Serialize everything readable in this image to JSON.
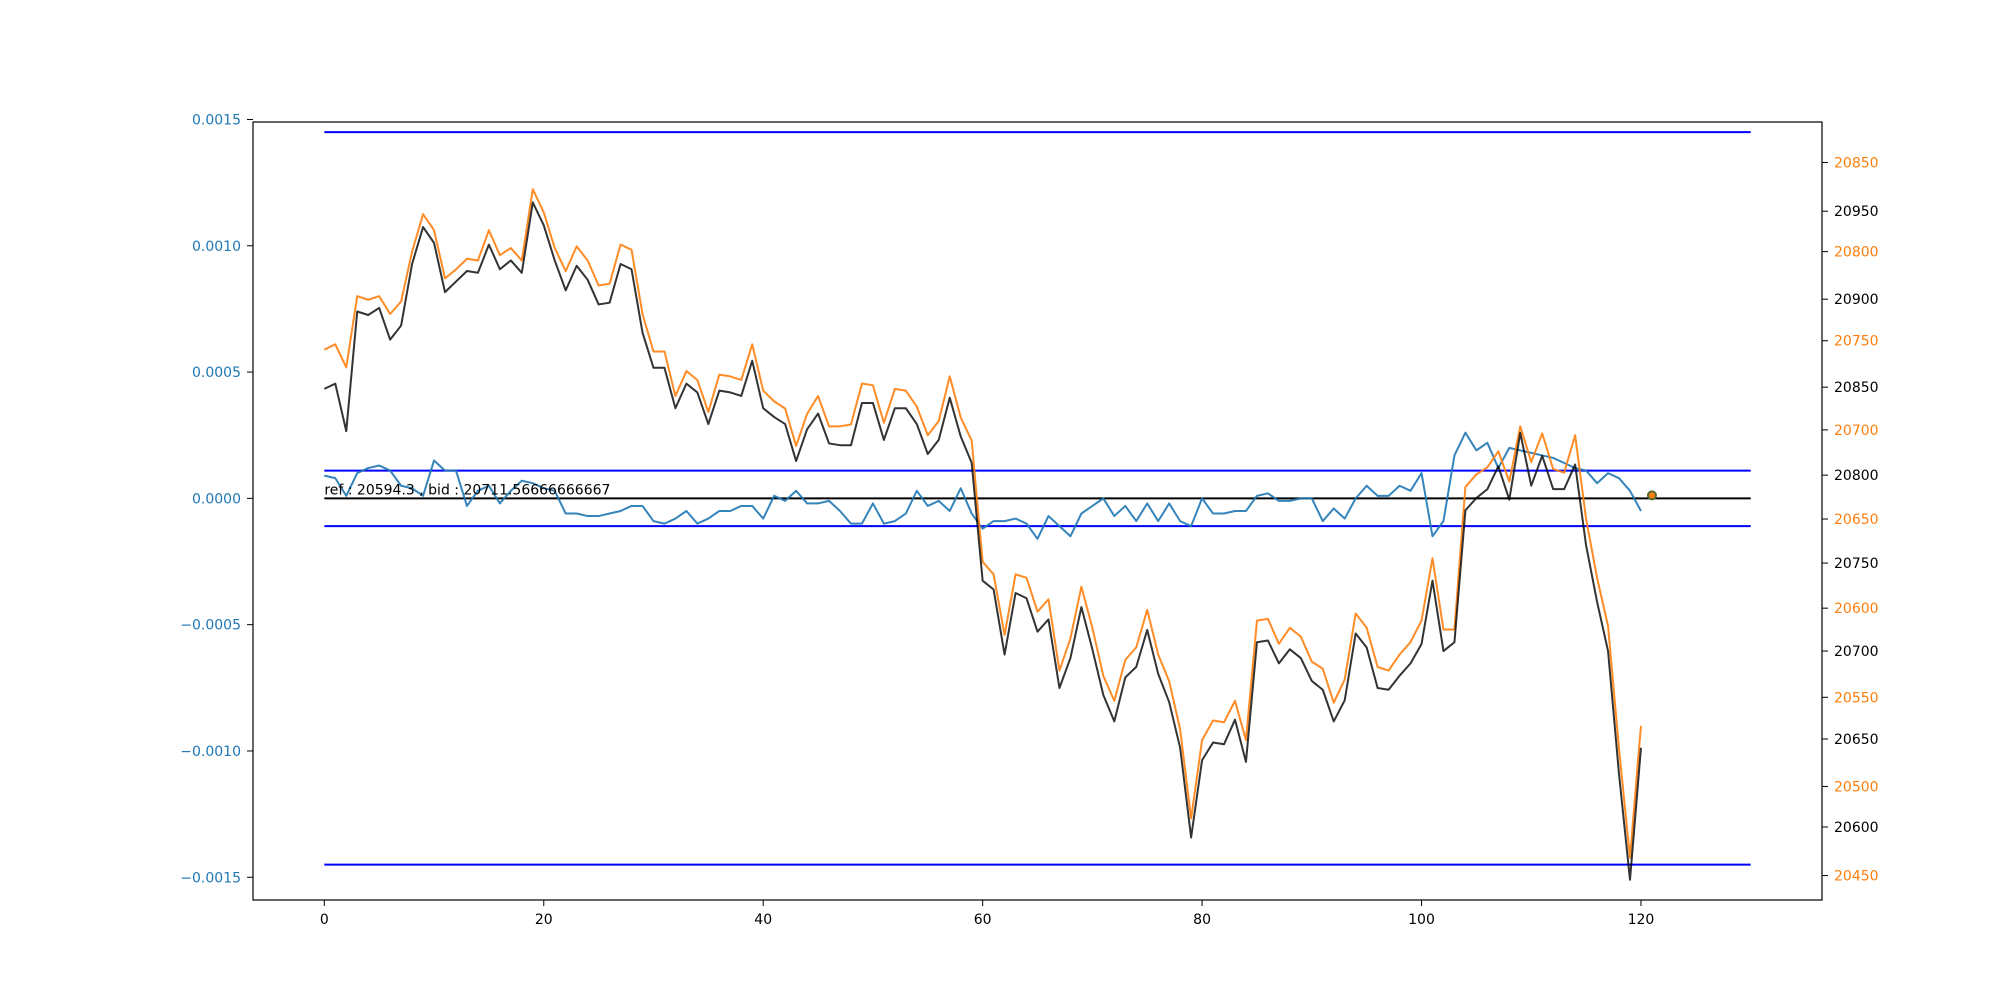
{
  "chart_data": {
    "type": "line",
    "title": "",
    "xlabel": "",
    "annotation": "ref : 20594.3 , bid : 20711.56666666667",
    "xlim": [
      -6.5,
      136.5
    ],
    "x_ticks": [
      0,
      20,
      40,
      60,
      80,
      100,
      120
    ],
    "axes": {
      "left": {
        "ylim": [
          -0.00159,
          0.00149
        ],
        "ticks": [
          -0.0015,
          -0.001,
          -0.0005,
          0.0,
          0.0005,
          0.001,
          0.0015
        ],
        "tick_labels": [
          "−0.0015",
          "−0.0010",
          "−0.0005",
          "0.0000",
          "0.0005",
          "0.0010",
          "0.0015"
        ],
        "color": "#1f77b4"
      },
      "right_orange": {
        "ylim": [
          20436.3,
          20872.7
        ],
        "ticks": [
          20450,
          20500,
          20550,
          20600,
          20650,
          20700,
          20750,
          20800,
          20850
        ],
        "color": "#ff7f0e"
      },
      "right_black": {
        "ylim": [
          20558.5,
          21000.7
        ],
        "ticks": [
          20600,
          20650,
          20700,
          20750,
          20800,
          20850,
          20900,
          20950
        ],
        "color": "#000000"
      }
    },
    "hlines": {
      "axis": "left",
      "color": "#0000ff",
      "black_color": "#000000",
      "xrange": [
        0,
        130
      ],
      "upper_band": 0.00145,
      "lower_band": -0.00145,
      "upper_inner": 0.00011,
      "lower_inner": -0.00011,
      "zero": 0.0
    },
    "marker": {
      "x": 121,
      "value": 1.2e-05,
      "axis": "left",
      "color": "#ff7f0e",
      "edge": "#556b2f"
    },
    "series": [
      {
        "axis": "left",
        "color": "#1f77b4",
        "values": [
          9e-05,
          8e-05,
          1e-05,
          0.0001,
          0.00012,
          0.00013,
          0.00011,
          5e-05,
          4e-05,
          1e-05,
          0.00015,
          0.00011,
          0.00011,
          -3e-05,
          3e-05,
          5e-05,
          -2e-05,
          3e-05,
          7e-05,
          6e-05,
          4e-05,
          3e-05,
          -6e-05,
          -6e-05,
          -7e-05,
          -7e-05,
          -6e-05,
          -5e-05,
          -3e-05,
          -3e-05,
          -9e-05,
          -0.0001,
          -8e-05,
          -5e-05,
          -0.0001,
          -8e-05,
          -5e-05,
          -5e-05,
          -3e-05,
          -3e-05,
          -8e-05,
          1e-05,
          -1e-05,
          3e-05,
          -2e-05,
          -2e-05,
          -1e-05,
          -5e-05,
          -0.0001,
          -0.0001,
          -2e-05,
          -0.0001,
          -9e-05,
          -6e-05,
          3e-05,
          -3e-05,
          -1e-05,
          -5e-05,
          4e-05,
          -6e-05,
          -0.00012,
          -9e-05,
          -9e-05,
          -8e-05,
          -0.0001,
          -0.00016,
          -7e-05,
          -0.00011,
          -0.00015,
          -6e-05,
          -3e-05,
          0.0,
          -7e-05,
          -3e-05,
          -9e-05,
          -2e-05,
          -9e-05,
          -2e-05,
          -9e-05,
          -0.00011,
          0.0,
          -6e-05,
          -6e-05,
          -5e-05,
          -5e-05,
          1e-05,
          2e-05,
          -1e-05,
          -1e-05,
          0.0,
          0.0,
          -9e-05,
          -4e-05,
          -8e-05,
          0.0,
          5e-05,
          1e-05,
          1e-05,
          5e-05,
          3e-05,
          0.0001,
          -0.00015,
          -9e-05,
          0.00017,
          0.00026,
          0.00019,
          0.00022,
          0.00012,
          0.0002,
          0.00019,
          0.00018,
          0.00017,
          0.00016,
          0.00014,
          0.00012,
          0.00011,
          6e-05,
          0.0001,
          8e-05,
          3e-05,
          -5e-05
        ]
      },
      {
        "axis": "right_orange",
        "color": "#ff7f0e",
        "values": [
          20745,
          20748,
          20735,
          20775,
          20773,
          20775,
          20765,
          20772,
          20800,
          20821,
          20812,
          20785,
          20790,
          20796,
          20795,
          20812,
          20798,
          20802,
          20795,
          20835,
          20822,
          20802,
          20789,
          20803,
          20795,
          20781,
          20782,
          20804,
          20801,
          20765,
          20744,
          20744,
          20719,
          20733,
          20728,
          20710,
          20731,
          20730,
          20728,
          20748,
          20722,
          20716,
          20712,
          20691,
          20709,
          20719,
          20702,
          20702,
          20703,
          20726,
          20725,
          20704,
          20723,
          20722,
          20713,
          20697,
          20705,
          20730,
          20707,
          20694,
          20626,
          20619,
          20585,
          20619,
          20617,
          20598,
          20605,
          20565,
          20583,
          20612,
          20589,
          20562,
          20548,
          20571,
          20578,
          20599,
          20574,
          20559,
          20532,
          20482,
          20526,
          20537,
          20536,
          20548,
          20526,
          20593,
          20594,
          20580,
          20589,
          20584,
          20570,
          20566,
          20547,
          20560,
          20597,
          20589,
          20567,
          20565,
          20574,
          20581,
          20593,
          20628,
          20588,
          20588,
          20668,
          20675,
          20679,
          20688,
          20671,
          20702,
          20682,
          20698,
          20678,
          20676,
          20697,
          20650,
          20617,
          20590,
          20521,
          20460,
          20534
        ]
      },
      {
        "axis": "right_black",
        "color": "#000000",
        "values": [
          20849,
          20852,
          20825,
          20893,
          20891,
          20895,
          20877,
          20885,
          20920,
          20941,
          20932,
          20904,
          20910,
          20916,
          20915,
          20931,
          20917,
          20922,
          20915,
          20955,
          20942,
          20922,
          20905,
          20919,
          20911,
          20897,
          20898,
          20920,
          20917,
          20881,
          20861,
          20861,
          20838,
          20852,
          20847,
          20829,
          20848,
          20847,
          20845,
          20865,
          20838,
          20833,
          20829,
          20808,
          20826,
          20835,
          20818,
          20817,
          20817,
          20841,
          20841,
          20820,
          20838,
          20838,
          20829,
          20812,
          20820,
          20844,
          20822,
          20807,
          20740,
          20735,
          20698,
          20733,
          20730,
          20711,
          20718,
          20679,
          20696,
          20725,
          20701,
          20675,
          20660,
          20685,
          20691,
          20712,
          20687,
          20671,
          20645,
          20594,
          20638,
          20648,
          20647,
          20661,
          20637,
          20705,
          20706,
          20693,
          20701,
          20696,
          20683,
          20678,
          20660,
          20672,
          20710,
          20702,
          20679,
          20678,
          20686,
          20693,
          20704,
          20740,
          20700,
          20705,
          20780,
          20787,
          20792,
          20805,
          20786,
          20824,
          20794,
          20811,
          20792,
          20792,
          20806,
          20760,
          20728,
          20700,
          20630,
          20570,
          20645
        ]
      }
    ]
  }
}
